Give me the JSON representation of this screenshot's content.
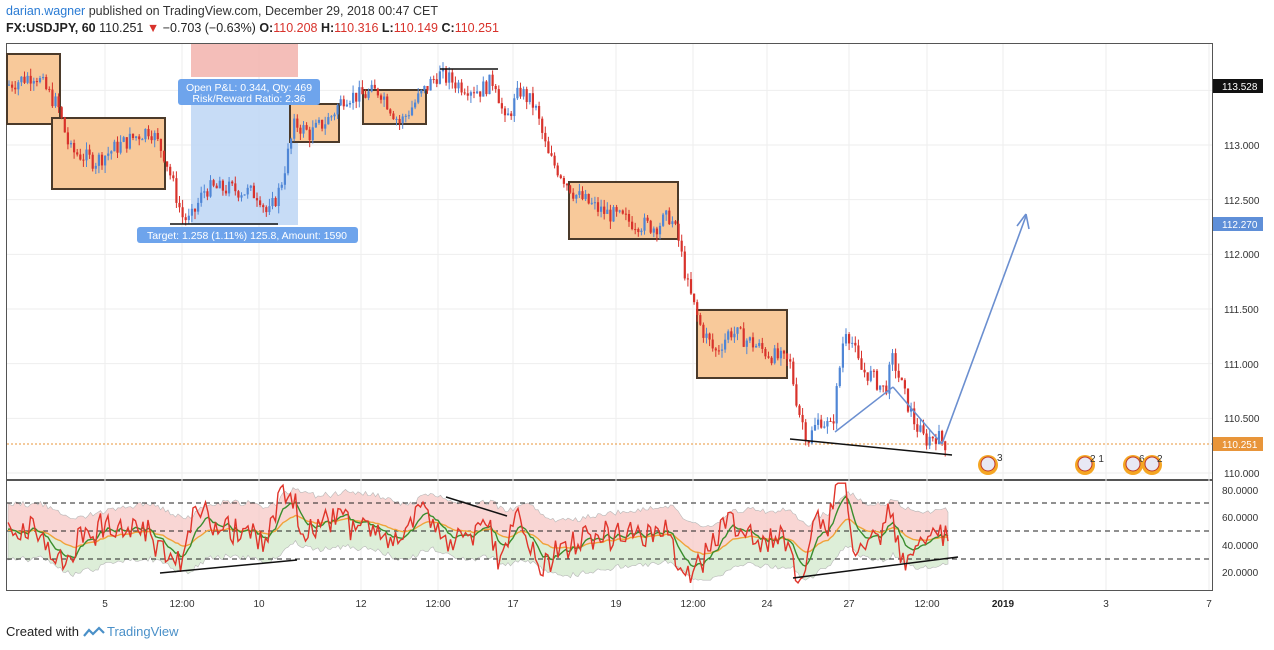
{
  "header": {
    "author": "darian.wagner",
    "published_text": "published on TradingView.com, December 29, 2018 00:47 CET",
    "symbol": "FX:USDJPY, 60",
    "last": "110.251",
    "change": "−0.703 (−0.63%)",
    "o_label": "O:",
    "o": "110.208",
    "h_label": "H:",
    "h": "110.316",
    "l_label": "L:",
    "l": "110.149",
    "c_label": "C:",
    "c": "110.251"
  },
  "position_tool": {
    "open_pl": "Open P&L: 0.344, Qty: 469",
    "risk_reward": "Risk/Reward Ratio: 2.36",
    "target": "Target: 1.258 (1.11%) 125.8, Amount: 1590"
  },
  "price_axis": {
    "ticks": [
      "113.000",
      "112.500",
      "112.000",
      "111.500",
      "111.000",
      "110.500",
      "110.000"
    ],
    "badge_high": "113.528",
    "badge_target": "112.270",
    "badge_last": "110.251"
  },
  "osc_axis": {
    "ticks": [
      "80.0000",
      "60.0000",
      "40.0000",
      "20.0000"
    ]
  },
  "time_axis": {
    "ticks": [
      "5",
      "12:00",
      "10",
      "12",
      "12:00",
      "17",
      "19",
      "12:00",
      "24",
      "27",
      "12:00",
      "2019",
      "3",
      "7"
    ]
  },
  "events": {
    "e1": "3",
    "e2": "2 1",
    "e3": "6",
    "e4": "2"
  },
  "footer": {
    "created_with": "Created with",
    "brand": "TradingView"
  },
  "colors": {
    "bull": "#4f86d6",
    "bear": "#d8322b",
    "box_fill": "#f8c99a",
    "box_stroke": "#4b3a2a",
    "profit_zone": "#bdd6f5",
    "loss_zone": "#f2b3ad",
    "rsi": "#e0342a",
    "signal": "#3a8e2e",
    "basis": "#f0a33a",
    "arrow": "#6b8fd0",
    "last_price_line": "#e8953a"
  },
  "chart_data": {
    "type": "candlestick",
    "symbol": "FX:USDJPY",
    "interval": "60",
    "y_range": [
      109.95,
      113.85
    ],
    "x_labels": [
      "5",
      "12:00",
      "10",
      "12",
      "12:00",
      "17",
      "19",
      "12:00",
      "24",
      "27",
      "12:00",
      "2019",
      "3",
      "7"
    ],
    "close_path": [
      {
        "x": "start",
        "y": 113.55
      },
      {
        "x": "5",
        "y": 112.95
      },
      {
        "x": "12:00",
        "y": 112.3
      },
      {
        "x": "10",
        "y": 112.55
      },
      {
        "x": "12",
        "y": 113.4
      },
      {
        "x": "12:00",
        "y": 113.6
      },
      {
        "x": "17",
        "y": 113.3
      },
      {
        "x": "19",
        "y": 112.4
      },
      {
        "x": "12:00",
        "y": 111.4
      },
      {
        "x": "24",
        "y": 110.35
      },
      {
        "x": "27",
        "y": 111.2
      },
      {
        "x": "12:00",
        "y": 110.25
      }
    ],
    "annotations": {
      "high_level": 113.528,
      "target_level": 112.27,
      "last_price": 110.251
    },
    "oscillator": {
      "type": "rsi",
      "y_range": [
        10,
        90
      ],
      "levels": [
        80,
        60,
        40,
        20
      ]
    }
  }
}
